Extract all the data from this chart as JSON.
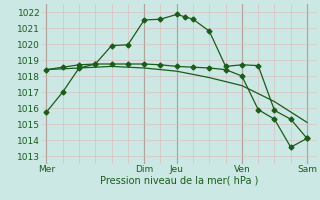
{
  "background_color": "#cce8e4",
  "grid_color_minor": "#dbb8b8",
  "grid_color_major": "#dbb8b8",
  "line_color": "#1a5c1a",
  "ylabel_ticks": [
    1013,
    1014,
    1015,
    1016,
    1017,
    1018,
    1019,
    1020,
    1021,
    1022
  ],
  "xlabel": "Pression niveau de la mer( hPa )",
  "xtick_labels": [
    "Mer",
    "",
    "Dim",
    "Jeu",
    "",
    "Ven",
    "",
    "Sam"
  ],
  "xtick_positions": [
    0,
    1.5,
    3,
    4,
    5,
    6,
    7,
    8
  ],
  "vline_positions": [
    0,
    3,
    4,
    6,
    8
  ],
  "vline_color": "#556655",
  "line1_x": [
    0,
    0.5,
    1,
    1.5,
    2,
    2.5,
    3,
    3.5,
    4,
    4.25,
    4.5,
    5,
    5.5,
    6,
    6.5,
    7,
    7.5,
    8
  ],
  "line1_y": [
    1015.75,
    1017.0,
    1018.5,
    1018.75,
    1019.9,
    1019.95,
    1021.5,
    1021.55,
    1021.85,
    1021.7,
    1021.55,
    1020.8,
    1018.6,
    1018.7,
    1018.65,
    1015.85,
    1015.3,
    1014.1
  ],
  "line2_x": [
    0,
    0.5,
    1,
    1.5,
    2,
    2.5,
    3,
    3.5,
    4,
    4.5,
    5,
    5.5,
    6,
    6.5,
    7,
    7.5,
    8
  ],
  "line2_y": [
    1018.4,
    1018.55,
    1018.7,
    1018.75,
    1018.75,
    1018.75,
    1018.75,
    1018.7,
    1018.6,
    1018.55,
    1018.5,
    1018.4,
    1018.0,
    1015.9,
    1015.3,
    1013.55,
    1014.1
  ],
  "line3_x": [
    0,
    1,
    2,
    3,
    4,
    5,
    6,
    7,
    8
  ],
  "line3_y": [
    1018.4,
    1018.5,
    1018.6,
    1018.5,
    1018.3,
    1017.9,
    1017.4,
    1016.4,
    1015.1
  ],
  "ylim": [
    1012.5,
    1022.5
  ],
  "xlim": [
    -0.15,
    8.3
  ],
  "figsize": [
    3.2,
    2.0
  ],
  "dpi": 100
}
